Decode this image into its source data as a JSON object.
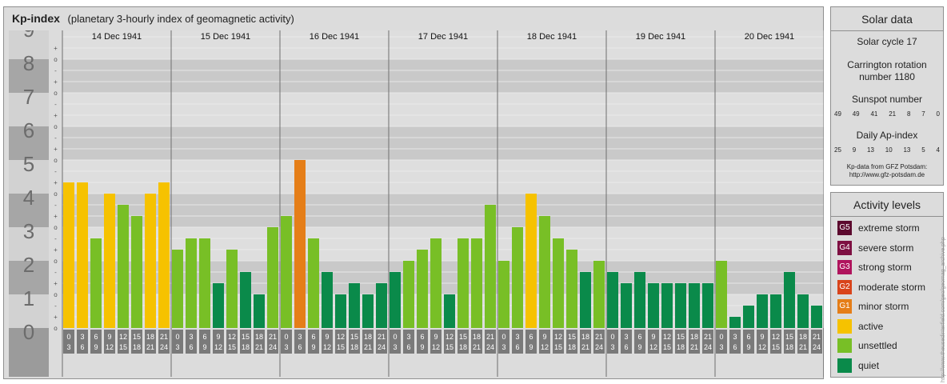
{
  "header": {
    "title": "Kp-index",
    "subtitle": "(planetary 3-hourly index of geomagnetic activity)"
  },
  "chart_data": {
    "type": "bar",
    "title": "Kp-index",
    "subtitle": "(planetary 3-hourly index of geomagnetic activity)",
    "ylim": [
      0,
      9
    ],
    "y_ticks": [
      "0",
      "1",
      "2",
      "3",
      "4",
      "5",
      "6",
      "7",
      "8",
      "9"
    ],
    "minor_ticks": [
      "-",
      "o",
      "+"
    ],
    "days": [
      "14 Dec 1941",
      "15 Dec 1941",
      "16 Dec 1941",
      "17 Dec 1941",
      "18 Dec 1941",
      "19 Dec 1941",
      "20 Dec 1941"
    ],
    "interval_labels": [
      [
        "0",
        "3"
      ],
      [
        "3",
        "6"
      ],
      [
        "6",
        "9"
      ],
      [
        "9",
        "12"
      ],
      [
        "12",
        "15"
      ],
      [
        "15",
        "18"
      ],
      [
        "18",
        "21"
      ],
      [
        "21",
        "24"
      ]
    ],
    "values": [
      4.333,
      4.333,
      2.667,
      4.0,
      3.667,
      3.333,
      4.0,
      4.333,
      2.333,
      2.667,
      2.667,
      1.333,
      2.333,
      1.667,
      1.0,
      3.0,
      3.333,
      5.0,
      2.667,
      1.667,
      1.0,
      1.333,
      1.0,
      1.333,
      1.667,
      2.0,
      2.333,
      2.667,
      1.0,
      2.667,
      2.667,
      3.667,
      2.0,
      3.0,
      4.0,
      3.333,
      2.667,
      2.333,
      1.667,
      2.0,
      1.667,
      1.333,
      1.667,
      1.333,
      1.333,
      1.333,
      1.333,
      1.333,
      2.0,
      0.333,
      0.667,
      1.0,
      1.0,
      1.667,
      1.0,
      0.667
    ]
  },
  "solar": {
    "title": "Solar data",
    "cycle": "Solar cycle 17",
    "carrington_line1": "Carrington rotation",
    "carrington_line2": "number 1180",
    "sunspot_title": "Sunspot number",
    "sunspot_values": [
      "49",
      "49",
      "41",
      "21",
      "8",
      "7",
      "0"
    ],
    "ap_title": "Daily Ap-index",
    "ap_values": [
      "25",
      "9",
      "13",
      "10",
      "13",
      "5",
      "4"
    ],
    "credit_line1": "Kp-data from GFZ Potsdam:",
    "credit_line2": "http://www.gfz-potsdam.de"
  },
  "levels": {
    "title": "Activity levels",
    "items": [
      {
        "code": "G5",
        "label": "extreme storm",
        "color": "#5c0a2e"
      },
      {
        "code": "G4",
        "label": "severe storm",
        "color": "#7e1042"
      },
      {
        "code": "G3",
        "label": "strong storm",
        "color": "#b0145d"
      },
      {
        "code": "G2",
        "label": "moderate storm",
        "color": "#d9441b"
      },
      {
        "code": "G1",
        "label": "minor storm",
        "color": "#e57e18"
      },
      {
        "code": "",
        "label": "active",
        "color": "#f6c200"
      },
      {
        "code": "",
        "label": "unsettled",
        "color": "#78bf26"
      },
      {
        "code": "",
        "label": "quiet",
        "color": "#0a8a4a"
      }
    ]
  },
  "credit_vertical": "http://www.theusedinterfield.com/geo/geomag_archive.php"
}
